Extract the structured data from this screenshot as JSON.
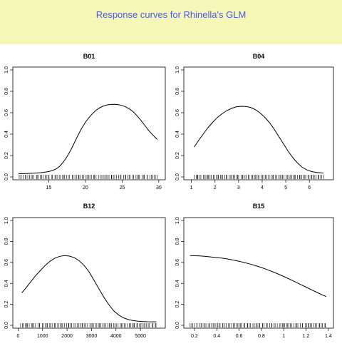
{
  "page": {
    "title": "Response curves for Rhinella's GLM",
    "header_bg": "#f5f7b8",
    "title_color": "#4a5bd8"
  },
  "chart_data": [
    {
      "type": "line",
      "title": "B01",
      "xlim": [
        10.5,
        30.5
      ],
      "ylim": [
        0,
        1
      ],
      "x_ticks": [
        15,
        20,
        25,
        30
      ],
      "y_ticks": [
        0.0,
        0.2,
        0.4,
        0.6,
        0.8,
        1.0
      ],
      "x": [
        10.9,
        12,
        13,
        14,
        15,
        15.5,
        16,
        16.5,
        17,
        17.5,
        18,
        18.5,
        19,
        19.5,
        20,
        20.5,
        21,
        21.5,
        22,
        22.5,
        23,
        23.5,
        24,
        24.5,
        25,
        25.5,
        26,
        26.5,
        27,
        27.5,
        28,
        28.5,
        29,
        29.5,
        29.8
      ],
      "y": [
        0.03,
        0.032,
        0.035,
        0.04,
        0.05,
        0.06,
        0.075,
        0.1,
        0.14,
        0.19,
        0.25,
        0.32,
        0.39,
        0.455,
        0.51,
        0.555,
        0.595,
        0.625,
        0.648,
        0.664,
        0.673,
        0.677,
        0.678,
        0.675,
        0.668,
        0.655,
        0.635,
        0.61,
        0.575,
        0.535,
        0.49,
        0.445,
        0.405,
        0.37,
        0.35
      ],
      "rug_range": [
        10.9,
        29.8
      ]
    },
    {
      "type": "line",
      "title": "B04",
      "xlim": [
        0.8,
        6.9
      ],
      "ylim": [
        0,
        1
      ],
      "x_ticks": [
        1,
        2,
        3,
        4,
        5,
        6
      ],
      "y_ticks": [
        0.0,
        0.2,
        0.4,
        0.6,
        0.8,
        1.0
      ],
      "x": [
        1.12,
        1.3,
        1.5,
        1.7,
        1.9,
        2.1,
        2.3,
        2.5,
        2.7,
        2.9,
        3.1,
        3.3,
        3.5,
        3.7,
        3.9,
        4.1,
        4.3,
        4.5,
        4.7,
        4.9,
        5.1,
        5.3,
        5.5,
        5.7,
        5.9,
        6.1,
        6.3,
        6.5,
        6.6
      ],
      "y": [
        0.28,
        0.34,
        0.4,
        0.46,
        0.51,
        0.555,
        0.59,
        0.62,
        0.64,
        0.655,
        0.66,
        0.658,
        0.65,
        0.63,
        0.6,
        0.56,
        0.51,
        0.45,
        0.38,
        0.31,
        0.24,
        0.18,
        0.13,
        0.09,
        0.065,
        0.05,
        0.042,
        0.038,
        0.036
      ],
      "rug_range": [
        1.12,
        6.6
      ]
    },
    {
      "type": "line",
      "title": "B12",
      "xlim": [
        -100,
        5900
      ],
      "ylim": [
        0,
        1
      ],
      "x_ticks": [
        0,
        1000,
        2000,
        3000,
        4000,
        5000
      ],
      "y_ticks": [
        0.0,
        0.2,
        0.4,
        0.6,
        0.8,
        1.0
      ],
      "x": [
        150,
        300,
        500,
        700,
        900,
        1100,
        1300,
        1500,
        1700,
        1900,
        2100,
        2300,
        2500,
        2700,
        2900,
        3100,
        3300,
        3500,
        3700,
        3900,
        4100,
        4300,
        4500,
        4700,
        4900,
        5100,
        5300,
        5500,
        5650
      ],
      "y": [
        0.31,
        0.35,
        0.41,
        0.47,
        0.52,
        0.57,
        0.61,
        0.64,
        0.658,
        0.665,
        0.66,
        0.645,
        0.615,
        0.57,
        0.51,
        0.43,
        0.35,
        0.27,
        0.2,
        0.14,
        0.1,
        0.072,
        0.055,
        0.045,
        0.039,
        0.036,
        0.034,
        0.033,
        0.033
      ],
      "rug_range": [
        100,
        5650
      ]
    },
    {
      "type": "line",
      "title": "B15",
      "xlim": [
        0.13,
        1.42
      ],
      "ylim": [
        0,
        1
      ],
      "x_ticks": [
        0.2,
        0.4,
        0.6,
        0.8,
        1.0,
        1.2,
        1.4
      ],
      "y_ticks": [
        0.0,
        0.2,
        0.4,
        0.6,
        0.8,
        1.0
      ],
      "x": [
        0.16,
        0.2,
        0.25,
        0.3,
        0.35,
        0.4,
        0.45,
        0.5,
        0.55,
        0.6,
        0.65,
        0.7,
        0.75,
        0.8,
        0.85,
        0.9,
        0.95,
        1.0,
        1.05,
        1.1,
        1.15,
        1.2,
        1.25,
        1.3,
        1.35,
        1.38
      ],
      "y": [
        0.665,
        0.663,
        0.661,
        0.657,
        0.652,
        0.646,
        0.64,
        0.632,
        0.622,
        0.611,
        0.598,
        0.584,
        0.568,
        0.551,
        0.532,
        0.511,
        0.489,
        0.466,
        0.441,
        0.416,
        0.39,
        0.364,
        0.338,
        0.313,
        0.288,
        0.275
      ],
      "rug_range": [
        0.16,
        1.38
      ]
    }
  ]
}
